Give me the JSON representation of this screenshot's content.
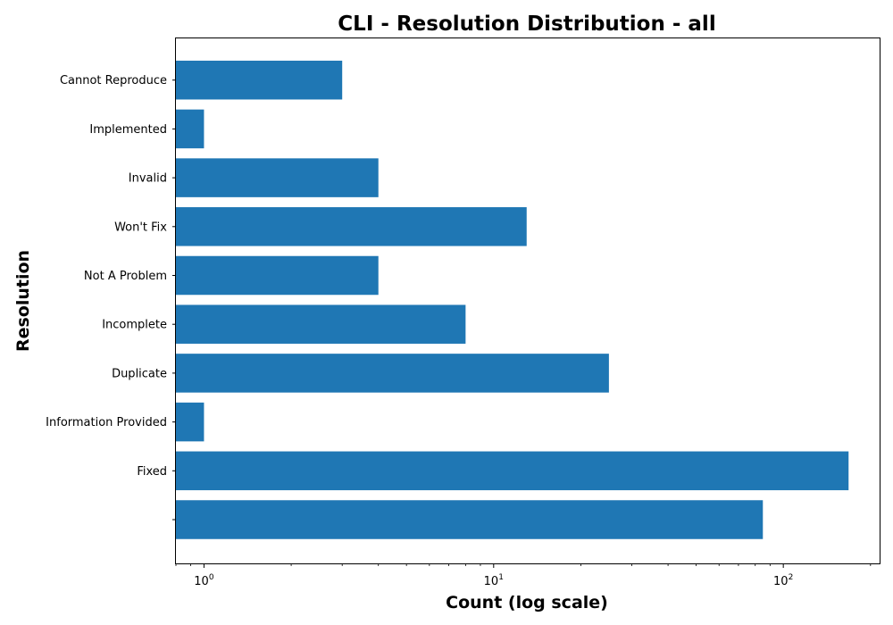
{
  "chart_data": {
    "type": "bar",
    "orientation": "horizontal",
    "title": "CLI - Resolution Distribution - all",
    "xlabel": "Count (log scale)",
    "ylabel": "Resolution",
    "x_scale": "log",
    "xlim": [
      0.8,
      215
    ],
    "x_ticks": [
      {
        "base": "10",
        "exp": "0",
        "value": 1
      },
      {
        "base": "10",
        "exp": "1",
        "value": 10
      },
      {
        "base": "10",
        "exp": "2",
        "value": 100
      }
    ],
    "categories": [
      "",
      "Fixed",
      "Information Provided",
      "Duplicate",
      "Incomplete",
      "Not A Problem",
      "Won't Fix",
      "Invalid",
      "Implemented",
      "Cannot Reproduce"
    ],
    "values": [
      85,
      168,
      1,
      25,
      8,
      4,
      13,
      4,
      1,
      3
    ],
    "bar_color": "#1f77b4",
    "grid": false,
    "legend": false
  }
}
